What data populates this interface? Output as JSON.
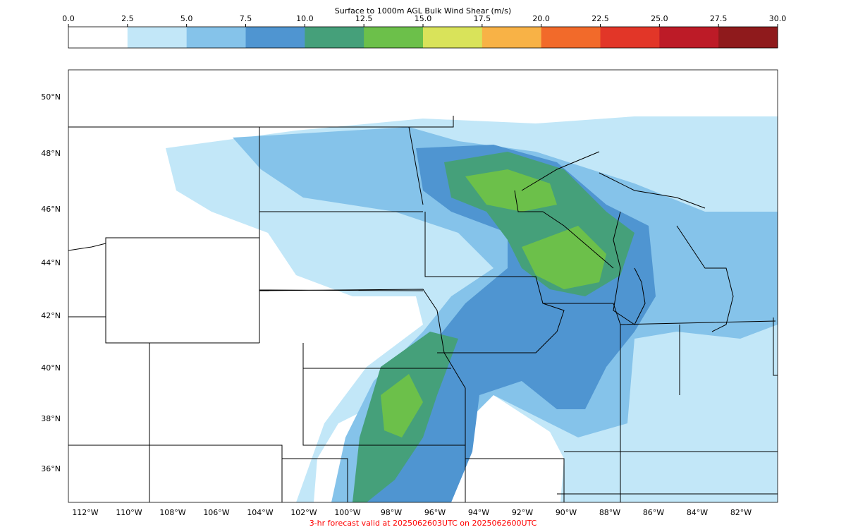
{
  "colorbar": {
    "title": "Surface to 1000m AGL Bulk Wind Shear (m/s)",
    "ticks": [
      "0.0",
      "2.5",
      "5.0",
      "7.5",
      "10.0",
      "12.5",
      "15.0",
      "17.5",
      "20.0",
      "22.5",
      "25.0",
      "27.5",
      "30.0"
    ],
    "colors": [
      "#ffffff",
      "#c2e7f8",
      "#85c3ea",
      "#4f95d1",
      "#45a07a",
      "#6cc04a",
      "#d9e35a",
      "#f8b246",
      "#f26a2a",
      "#e23628",
      "#bd1b27",
      "#8f1a1c"
    ]
  },
  "map": {
    "lat_labels": [
      "50°N",
      "48°N",
      "46°N",
      "44°N",
      "42°N",
      "40°N",
      "38°N",
      "36°N"
    ],
    "lon_labels": [
      "112°W",
      "110°W",
      "108°W",
      "106°W",
      "104°W",
      "102°W",
      "100°W",
      "98°W",
      "96°W",
      "94°W",
      "92°W",
      "90°W",
      "88°W",
      "86°W",
      "84°W",
      "82°W"
    ]
  },
  "footer": "3-hr forecast valid at 2025062603UTC on 2025062600UTC"
}
